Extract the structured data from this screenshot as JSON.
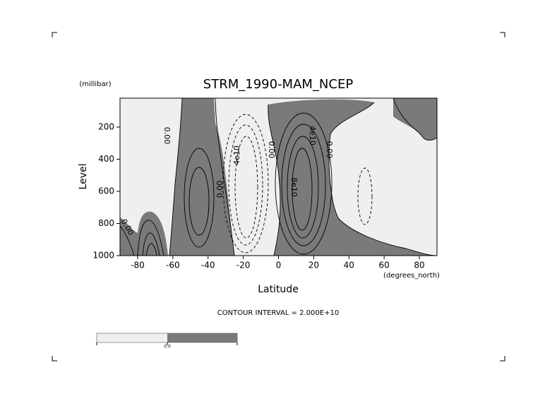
{
  "chart_data": {
    "type": "contour",
    "title": "STRM_1990-MAM_NCEP",
    "y_unit": "(millibar)",
    "ylabel": "Level",
    "xlabel": "Latitude",
    "x_unit": "(degrees_north)",
    "xlim": [
      -90,
      90
    ],
    "xticks": [
      -80,
      -60,
      -40,
      -20,
      0,
      20,
      40,
      60,
      80
    ],
    "ylim": [
      1000,
      20
    ],
    "yticks": [
      200,
      400,
      600,
      800,
      1000
    ],
    "annotation": "CONTOUR INTERVAL = 2.000E+10",
    "contour_labels": [
      "0.00",
      "0.00",
      "0.00",
      "4e10",
      "0.00",
      "4e10",
      "8e10",
      "0.00"
    ],
    "colorbar_label": "0.0",
    "fill_negative": "#efefef",
    "fill_positive": "#7a7a7a"
  }
}
